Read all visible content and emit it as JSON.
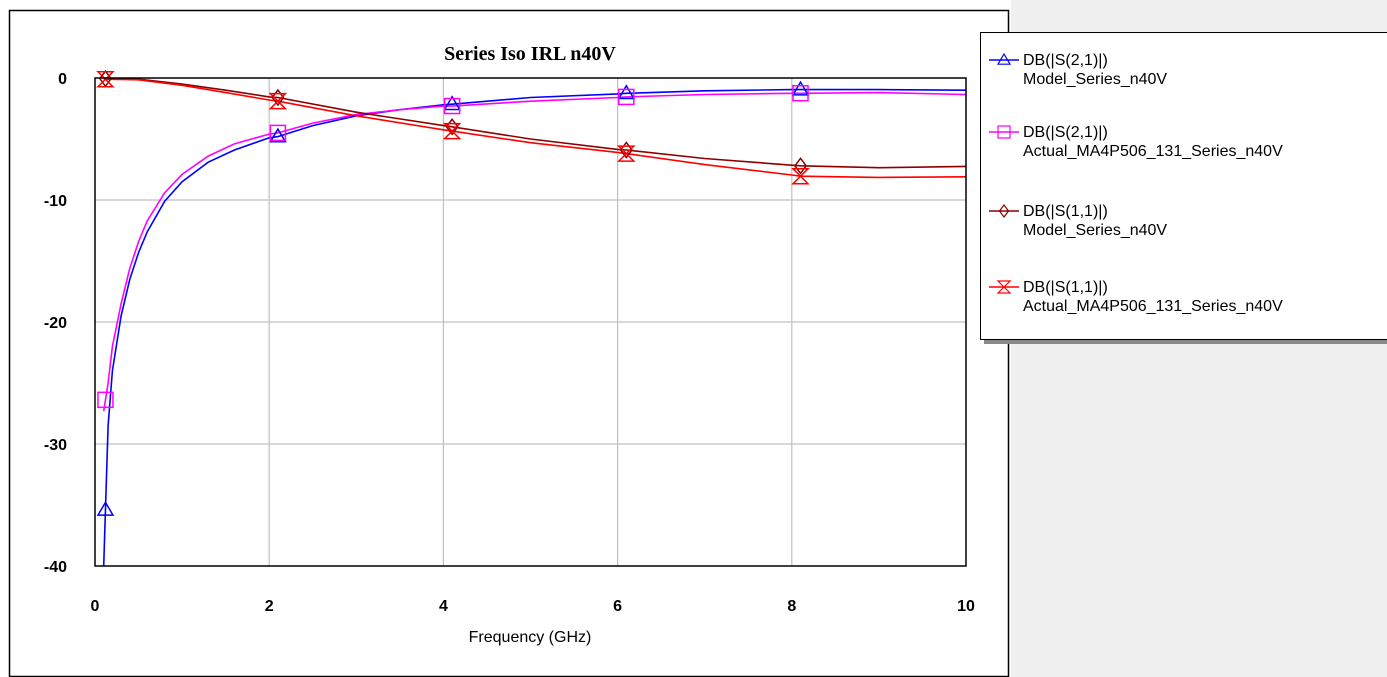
{
  "chart_data": {
    "type": "line",
    "title": "Series Iso IRL n40V",
    "xlabel": "Frequency (GHz)",
    "ylabel": "",
    "xlim": [
      0,
      10
    ],
    "ylim": [
      -40,
      0
    ],
    "xticks": [
      0,
      2,
      4,
      6,
      8,
      10
    ],
    "yticks": [
      0,
      -10,
      -20,
      -30,
      -40
    ],
    "xtick_labels": [
      "0",
      "2",
      "4",
      "6",
      "8",
      "10"
    ],
    "ytick_labels": [
      "0",
      "-10",
      "-20",
      "-30",
      "-40"
    ],
    "grid": true,
    "legend_position": "right",
    "series": [
      {
        "name_line1": "DB(|S(2,1)|)",
        "name_line2": "Model_Series_n40V",
        "color": "#0000ff",
        "marker": "triangle",
        "x": [
          0.1,
          0.15,
          0.2,
          0.3,
          0.4,
          0.5,
          0.6,
          0.8,
          1.0,
          1.3,
          1.6,
          2.0,
          2.1,
          2.5,
          3.0,
          3.5,
          4.0,
          4.1,
          5.0,
          6.0,
          6.1,
          7.0,
          8.0,
          8.1,
          9.0,
          10.0
        ],
        "y": [
          -40,
          -28.5,
          -24,
          -19.5,
          -16.5,
          -14.3,
          -12.6,
          -10.1,
          -8.5,
          -6.9,
          -5.9,
          -4.9,
          -4.8,
          -3.9,
          -3.1,
          -2.6,
          -2.2,
          -2.15,
          -1.6,
          -1.3,
          -1.25,
          -1.05,
          -0.95,
          -0.95,
          -0.95,
          -1.0
        ],
        "markers_x": [
          0.12,
          2.1,
          4.1,
          6.1,
          8.1
        ]
      },
      {
        "name_line1": "DB(|S(2,1)|)",
        "name_line2": "Actual_MA4P506_131_Series_n40V",
        "color": "#ff00ff",
        "marker": "square",
        "x": [
          0.1,
          0.15,
          0.2,
          0.3,
          0.4,
          0.5,
          0.6,
          0.8,
          1.0,
          1.3,
          1.6,
          2.0,
          2.1,
          2.5,
          3.0,
          3.5,
          4.0,
          4.1,
          5.0,
          6.0,
          6.1,
          7.0,
          8.0,
          8.1,
          9.0,
          10.0
        ],
        "y": [
          -27.3,
          -25,
          -22,
          -18.5,
          -15.6,
          -13.4,
          -11.7,
          -9.4,
          -7.9,
          -6.4,
          -5.4,
          -4.6,
          -4.5,
          -3.7,
          -3.0,
          -2.6,
          -2.3,
          -2.3,
          -1.9,
          -1.6,
          -1.55,
          -1.35,
          -1.25,
          -1.25,
          -1.2,
          -1.35
        ],
        "markers_x": [
          0.12,
          2.1,
          4.1,
          6.1,
          8.1
        ]
      },
      {
        "name_line1": "DB(|S(1,1)|)",
        "name_line2": "Model_Series_n40V",
        "color": "#8b0000",
        "marker": "diamond",
        "x": [
          0.1,
          0.5,
          1.0,
          1.5,
          2.0,
          2.1,
          3.0,
          4.0,
          4.1,
          5.0,
          6.0,
          6.1,
          7.0,
          8.0,
          8.1,
          9.0,
          10.0
        ],
        "y": [
          -0.05,
          -0.1,
          -0.5,
          -1.0,
          -1.55,
          -1.6,
          -2.8,
          -3.9,
          -4.0,
          -5.0,
          -5.85,
          -5.9,
          -6.6,
          -7.15,
          -7.2,
          -7.35,
          -7.25
        ],
        "markers_x": [
          0.12,
          2.1,
          4.1,
          6.1,
          8.1
        ]
      },
      {
        "name_line1": "DB(|S(1,1)|)",
        "name_line2": "Actual_MA4P506_131_Series_n40V",
        "color": "#ff0000",
        "marker": "hourglass",
        "x": [
          0.1,
          0.5,
          1.0,
          1.5,
          2.0,
          2.1,
          3.0,
          4.0,
          4.1,
          5.0,
          6.0,
          6.1,
          7.0,
          8.0,
          8.1,
          9.0,
          10.0
        ],
        "y": [
          -0.1,
          -0.15,
          -0.6,
          -1.2,
          -1.8,
          -1.9,
          -3.1,
          -4.25,
          -4.35,
          -5.3,
          -6.1,
          -6.2,
          -7.1,
          -7.95,
          -8.05,
          -8.15,
          -8.1
        ],
        "markers_x": [
          0.12,
          2.1,
          4.1,
          6.1,
          8.1
        ]
      }
    ]
  }
}
